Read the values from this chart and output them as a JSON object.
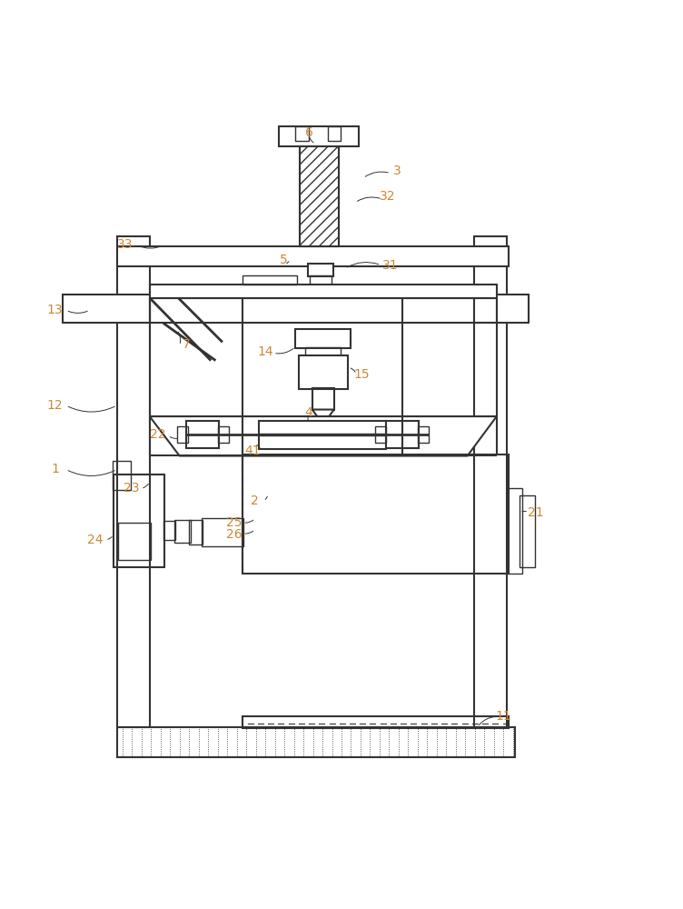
{
  "fig_width": 7.52,
  "fig_height": 10.0,
  "dpi": 100,
  "line_color": "#333333",
  "bg_color": "#ffffff",
  "label_color": "#cc8833",
  "line_width": 1.5,
  "thin_lw": 1.0
}
